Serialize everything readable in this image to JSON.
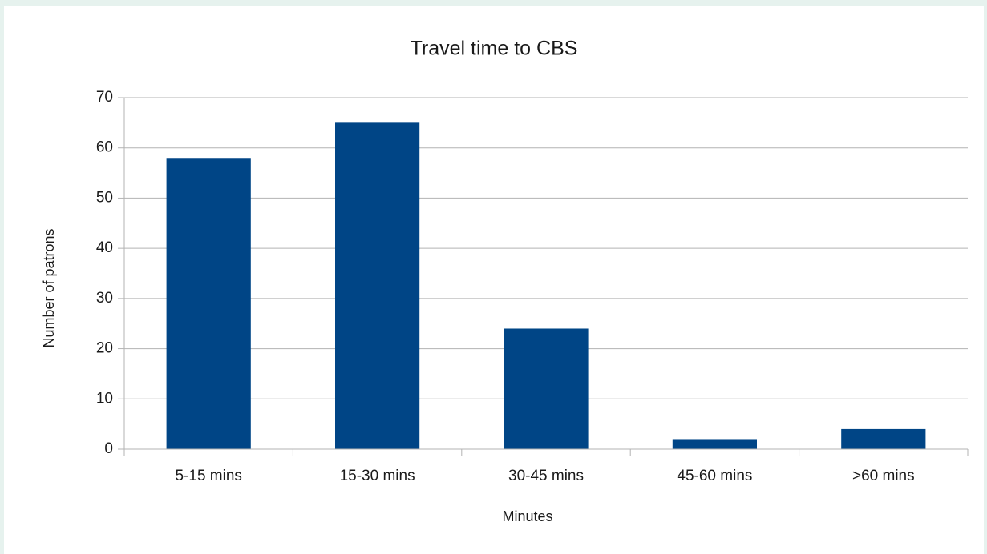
{
  "chart_data": {
    "type": "bar",
    "title": "Travel time to CBS",
    "x_label": "Minutes",
    "y_label": "Number of patrons",
    "categories": [
      "5-15 mins",
      "15-30 mins",
      "30-45 mins",
      "45-60 mins",
      ">60 mins"
    ],
    "values": [
      58,
      65,
      24,
      2,
      4
    ],
    "color": "#004586",
    "ylim": [
      0,
      70
    ],
    "yticks": [
      0,
      10,
      20,
      30,
      40,
      50,
      60,
      70
    ],
    "grid": true
  }
}
